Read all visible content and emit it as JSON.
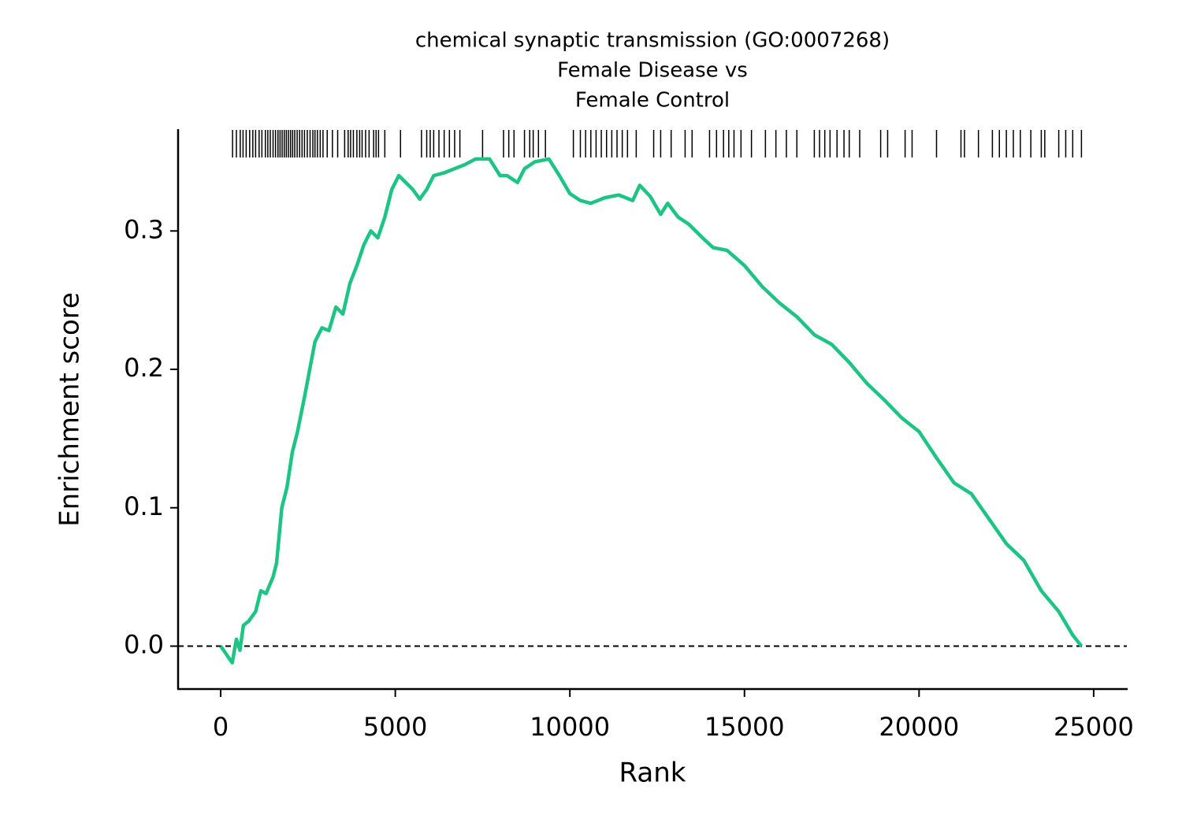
{
  "chart_data": {
    "type": "line",
    "title": [
      "chemical synaptic transmission (GO:0007268)",
      "Female Disease vs",
      "Female Control"
    ],
    "xlabel": "Rank",
    "ylabel": "Enrichment score",
    "xlim": [
      -1220,
      25950
    ],
    "ylim": [
      -0.031,
      0.373
    ],
    "xticks": [
      0,
      5000,
      10000,
      15000,
      20000,
      25000
    ],
    "yticks": [
      {
        "value": 0,
        "label": "0.0"
      },
      0.1,
      0.2,
      0.3
    ],
    "hline": 0,
    "color": "#1dc484",
    "x": [
      0,
      330,
      450,
      550,
      650,
      800,
      1000,
      1150,
      1300,
      1500,
      1600,
      1750,
      1900,
      2050,
      2200,
      2400,
      2550,
      2700,
      2900,
      3100,
      3300,
      3500,
      3700,
      3900,
      4100,
      4300,
      4500,
      4700,
      4900,
      5100,
      5300,
      5500,
      5700,
      5900,
      6100,
      6400,
      6700,
      7000,
      7300,
      7700,
      8000,
      8200,
      8500,
      8700,
      9000,
      9400,
      9700,
      10000,
      10300,
      10600,
      11000,
      11400,
      11800,
      12000,
      12300,
      12600,
      12800,
      13100,
      13400,
      13800,
      14100,
      14500,
      15000,
      15500,
      16000,
      16500,
      17000,
      17500,
      18000,
      18500,
      19000,
      19500,
      20000,
      20500,
      21000,
      21500,
      22000,
      22500,
      23000,
      23500,
      24000,
      24400,
      24650
    ],
    "values": [
      0,
      -0.012,
      0.005,
      -0.003,
      0.015,
      0.018,
      0.025,
      0.04,
      0.038,
      0.05,
      0.06,
      0.1,
      0.115,
      0.14,
      0.155,
      0.18,
      0.2,
      0.22,
      0.23,
      0.228,
      0.245,
      0.24,
      0.262,
      0.275,
      0.29,
      0.3,
      0.295,
      0.31,
      0.33,
      0.34,
      0.335,
      0.33,
      0.323,
      0.33,
      0.34,
      0.342,
      0.345,
      0.348,
      0.352,
      0.352,
      0.34,
      0.34,
      0.335,
      0.345,
      0.35,
      0.352,
      0.34,
      0.327,
      0.322,
      0.32,
      0.324,
      0.326,
      0.322,
      0.333,
      0.325,
      0.312,
      0.32,
      0.31,
      0.305,
      0.295,
      0.288,
      0.286,
      0.275,
      0.26,
      0.248,
      0.238,
      0.225,
      0.218,
      0.205,
      0.19,
      0.178,
      0.165,
      0.155,
      0.136,
      0.118,
      0.11,
      0.092,
      0.074,
      0.062,
      0.04,
      0.025,
      0.008,
      0
    ],
    "hits": [
      340,
      450,
      560,
      640,
      730,
      830,
      920,
      1000,
      1100,
      1180,
      1280,
      1350,
      1420,
      1500,
      1570,
      1640,
      1700,
      1760,
      1820,
      1880,
      1940,
      2000,
      2060,
      2120,
      2190,
      2260,
      2330,
      2400,
      2480,
      2560,
      2640,
      2700,
      2770,
      2850,
      2930,
      3050,
      3200,
      3350,
      3550,
      3650,
      3720,
      3800,
      3900,
      3980,
      4050,
      4150,
      4250,
      4380,
      4450,
      4520,
      4700,
      5150,
      5750,
      5900,
      6000,
      6100,
      6250,
      6400,
      6550,
      6700,
      6850,
      7500,
      8100,
      8250,
      8400,
      8700,
      8850,
      8950,
      9100,
      9300,
      10100,
      10300,
      10450,
      10600,
      10750,
      10900,
      11050,
      11200,
      11350,
      11500,
      11650,
      11900,
      12400,
      12600,
      12900,
      13300,
      13500,
      14000,
      14200,
      14400,
      14550,
      14700,
      14900,
      15200,
      15600,
      15900,
      16200,
      16500,
      17000,
      17150,
      17300,
      17450,
      17650,
      17850,
      18000,
      18300,
      18900,
      19100,
      19600,
      19800,
      20500,
      21200,
      21300,
      21700,
      22100,
      22300,
      22500,
      22700,
      22900,
      23200,
      23500,
      23600,
      24000,
      24200,
      24400,
      24650
    ]
  }
}
